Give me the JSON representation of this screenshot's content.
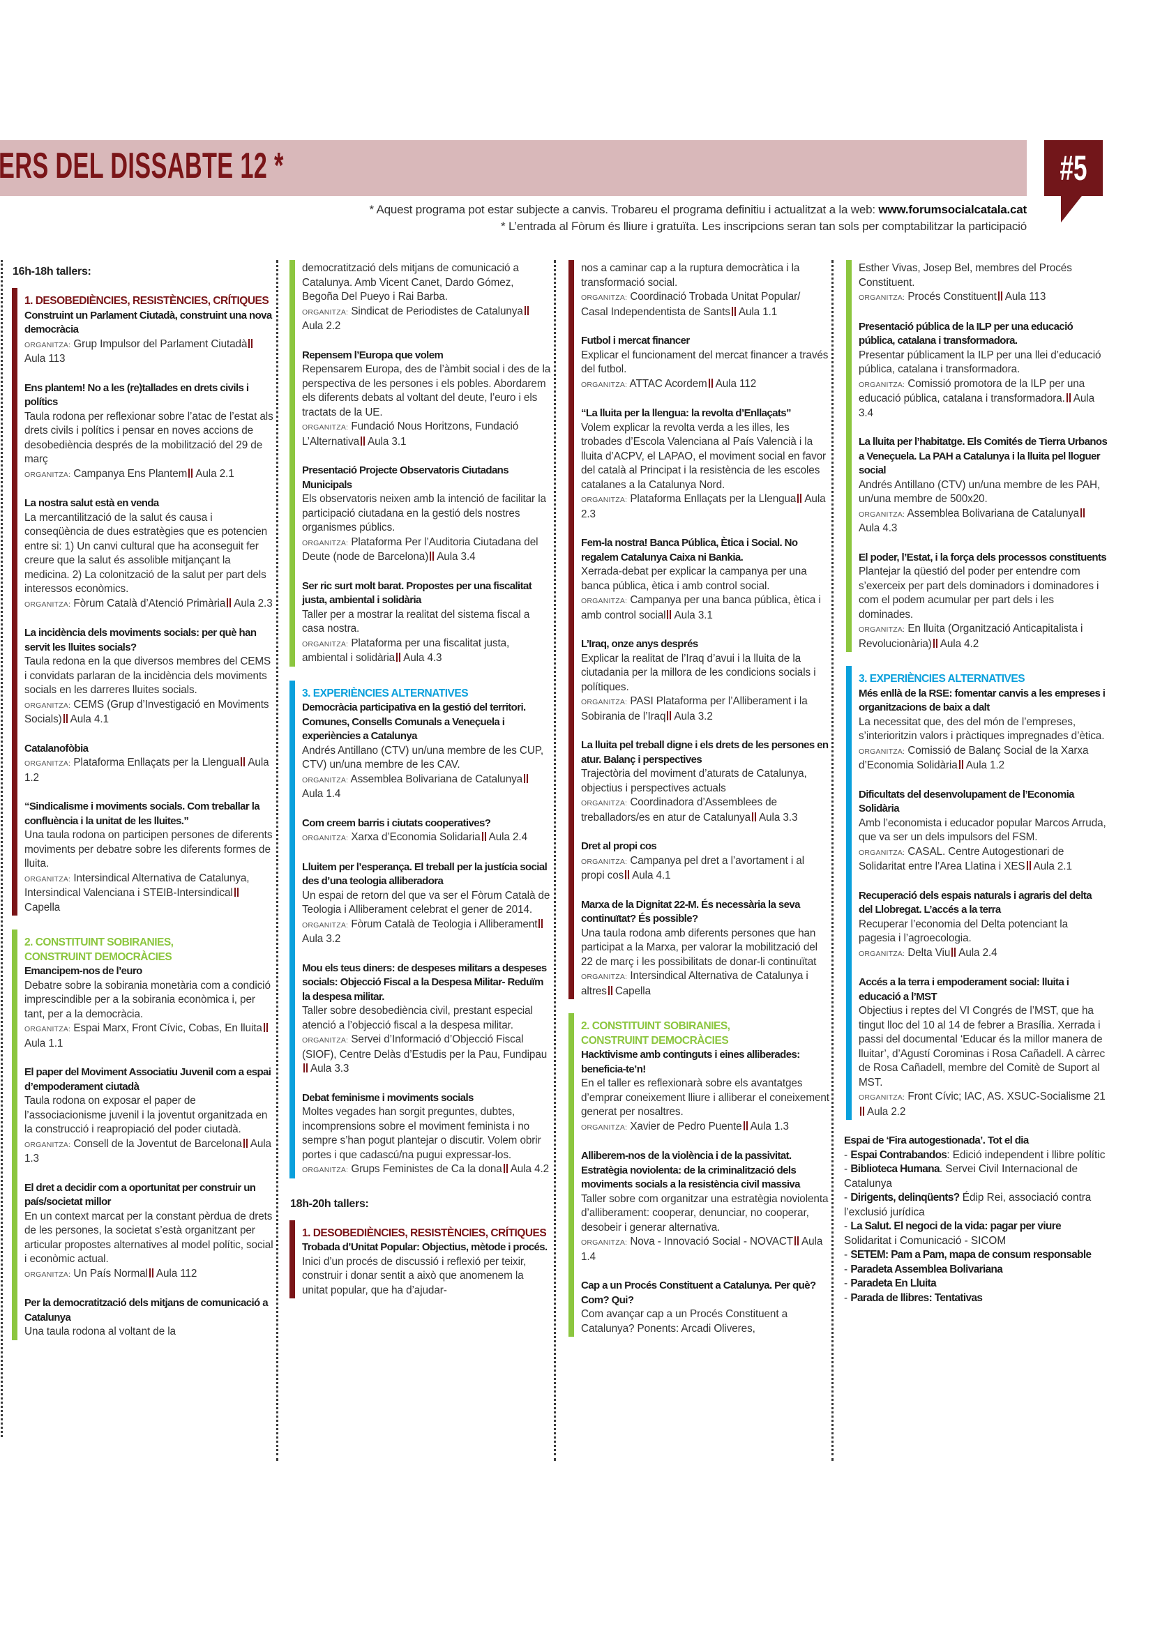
{
  "header": {
    "title": "ERS DEL DISSABTE 12 *",
    "badge": "#5",
    "note1_text": "* Aquest programa pot estar subjecte a canvis. Trobareu el programa definitiu i actualitzat a la web: ",
    "note1_link": "www.forumsocialcatala.cat",
    "note2": "* L’entrada al Fòrum és lliure i gratuïta. Les inscripcions seran tan sols per comptabilitzar la participació"
  },
  "colors": {
    "section1": "#7a1518",
    "section2": "#8cc63f",
    "section3": "#0aa0dc",
    "band": "#d9b8ba",
    "badge": "#72161a"
  },
  "org_label": "ORGANITZA:",
  "columns": [
    {
      "blocks": [
        {
          "type": "time",
          "label": "16h-18h tallers:"
        },
        {
          "type": "section",
          "category": "section1",
          "title": "1. DESOBEDIÈNCIES, RESISTÈNCIES, CRÍTIQUES",
          "items": [
            {
              "title": "Construint un Parlament Ciutadà, construint una nova democràcia",
              "org": "Grup Impulsor del Parlament Ciutadà",
              "room": "Aula 113"
            },
            {
              "title": "Ens plantem! No a les (re)tallades en drets civils i polítics",
              "desc": "Taula rodona per reflexionar sobre l’atac de l’estat als drets civils i polítics i pensar en noves accions de desobediència després de la mobilització del 29 de març",
              "org": "Campanya Ens Plantem",
              "room": "Aula 2.1"
            },
            {
              "title": "La nostra salut està en venda",
              "desc": "La mercantilització de la salut és causa i conseqüència de dues estratègies que es potencien entre si: 1) Un canvi cultural que ha aconseguit fer creure que la salut és assolible mitjançant la medicina. 2) La colonització de la salut per part dels interessos econòmics.",
              "org": "Fòrum Català d’Atenció Primària",
              "room": "Aula 2.3"
            },
            {
              "title": "La incidència dels moviments socials: per què han servit les lluites socials?",
              "desc": "Taula redona en la que diversos membres del CEMS i convidats parlaran de la incidència dels moviments socials en les darreres lluites socials.",
              "org": "CEMS (Grup d’Investigació en Moviments Socials)",
              "room": "Aula 4.1"
            },
            {
              "title": "Catalanofòbia",
              "org": "Plataforma Enllaçats per la Llengua",
              "room": "Aula 1.2"
            },
            {
              "title": "“Sindicalisme i moviments socials. Com treballar la confluència i la unitat de les lluites.”",
              "desc": "Una taula rodona on participen persones de diferents moviments per debatre sobre les diferents formes de lluita.",
              "org": "Intersindical Alternativa de Catalunya, Intersindical Valenciana i STEIB-Intersindical",
              "room": "Capella"
            }
          ]
        },
        {
          "type": "section",
          "category": "section2",
          "title": "2. CONSTITUINT SOBIRANIES,\nCONSTRUINT DEMOCRÀCIES",
          "items": [
            {
              "title": "Emancipem-nos de l’euro",
              "desc": "Debatre sobre la sobirania monetària com a condició imprescindible per a la sobirania econòmica i, per tant, per a la democràcia.",
              "org": "Espai Marx, Front Cívic, Cobas, En lluita",
              "room": "Aula 1.1"
            },
            {
              "title": "El paper del Moviment Associatiu Juvenil com a espai d’empoderament ciutadà",
              "desc": "Taula rodona on exposar el paper de l’associacionisme juvenil i la joventut organitzada en la construcció i reapropiació del poder ciutadà.",
              "org": "Consell de la Joventut de Barcelona",
              "room": "Aula 1.3"
            },
            {
              "title": "El dret a decidir com a oportunitat per construir un país/societat millor",
              "desc": "En un context marcat per la constant pèrdua de drets de les persones, la societat s’està organitzant per articular propostes alternatives al model polític, social i econòmic actual.",
              "org": "Un País Normal",
              "room": "Aula 112"
            },
            {
              "title": "Per la democratització dels mitjans de comunicació a Catalunya",
              "desc": "Una taula rodona al voltant de la"
            }
          ]
        }
      ]
    },
    {
      "blocks": [
        {
          "type": "section",
          "category": "section2",
          "items": [
            {
              "desc": "democratització dels mitjans de comunicació a Catalunya. Amb Vicent Canet, Dardo Gómez, Begoña Del Pueyo i Rai Barba.",
              "org": "Sindicat de Periodistes de Catalunya",
              "room": "Aula 2.2"
            },
            {
              "title": "Repensem l’Europa que volem",
              "desc": "Repensarem Europa, des de l’àmbit social i des de la perspectiva de les persones i els pobles. Abordarem els diferents debats al voltant del deute, l’euro i els tractats de la UE.",
              "org": "Fundació Nous Horitzons, Fundació L’Alternativa",
              "room": "Aula 3.1"
            },
            {
              "title": "Presentació Projecte Observatoris Ciutadans Municipals",
              "desc": "Els observatoris neixen amb la intenció de facilitar la participació ciutadana en la gestió dels nostres organismes públics.",
              "org": "Plataforma Per l’Auditoria Ciutadana del Deute (node de Barcelona)",
              "room": "Aula 3.4"
            },
            {
              "title": "Ser ric surt molt barat. Propostes per una fiscalitat justa, ambiental i solidària",
              "desc": "Taller per a mostrar la realitat del sistema fiscal a casa nostra.",
              "org": "Plataforma per una fiscalitat justa, ambiental i solidària",
              "room": "Aula 4.3"
            }
          ]
        },
        {
          "type": "section",
          "category": "section3",
          "title": "3. EXPERIÈNCIES ALTERNATIVES",
          "items": [
            {
              "title": "Democràcia participativa en la gestió del territori. Comunes, Consells Comunals a Veneçuela i experiències a Catalunya",
              "desc": "Andrés Antillano (CTV) un/una membre de les CUP, CTV) un/una membre de les CAV.",
              "org": "Assemblea Bolivariana de Catalunya",
              "room": "Aula 1.4"
            },
            {
              "title": "Com creem barris i ciutats cooperatives?",
              "org": "Xarxa d’Economia Solidaria",
              "room": "Aula 2.4"
            },
            {
              "title": "Lluitem per l’esperança. El treball per la justícia social des d’una teologia alliberadora",
              "desc": "Un espai de retorn del que va ser el Fòrum Català de Teologia i Alliberament celebrat el gener de 2014.",
              "org": "Fòrum Català de Teologia i Alliberament",
              "room": "Aula 3.2"
            },
            {
              "title": "Mou els teus diners: de despeses militars a despeses socials: Objecció Fiscal a la Despesa Militar- Reduïm la despesa militar.",
              "desc": "Taller sobre desobediència civil, prestant especial atenció a l’objecció fiscal a la despesa militar.",
              "org": "Servei d’Informació d’Objecció Fiscal (SIOF), Centre Delàs d’Estudis per la Pau, Fundipau",
              "room": "Aula 3.3"
            },
            {
              "title": "Debat feminisme i moviments socials",
              "desc": "Moltes vegades han sorgit preguntes, dubtes, incomprensions sobre el moviment feminista i no sempre s’han pogut plantejar o discutir. Volem obrir portes i que cadascú/na pugui expressar-los.",
              "org": "Grups Feministes de Ca la dona",
              "room": "Aula 4.2"
            }
          ]
        },
        {
          "type": "time",
          "label": "18h-20h tallers:"
        },
        {
          "type": "section",
          "category": "section1",
          "title": "1. DESOBEDIÈNCIES, RESISTÈNCIES, CRÍTIQUES",
          "items": [
            {
              "title": "Trobada d’Unitat Popular: Objectius, mètode i procés.",
              "desc": "Inici d’un procés de discussió i reflexió per teixir, construir i donar sentit a això que anomenem la unitat popular, que ha d’ajudar-"
            }
          ]
        }
      ]
    },
    {
      "blocks": [
        {
          "type": "section",
          "category": "section1",
          "items": [
            {
              "desc": "nos a caminar cap a la ruptura democràtica i la transformació social.",
              "org": "Coordinació Trobada Unitat Popular/ Casal Independentista de Sants",
              "room": "Aula 1.1"
            },
            {
              "title": "Futbol i mercat financer",
              "desc": "Explicar el funcionament del mercat financer a través del futbol.",
              "org": "ATTAC Acordem",
              "room": "Aula 112"
            },
            {
              "title": "“La lluita per la llengua: la revolta d’Enllaçats”",
              "desc": "Volem explicar la revolta verda a les illes, les trobades d’Escola Valenciana al País Valencià i la lluita d’ACPV, el LAPAO, el moviment social en favor del català al Principat i la resistència de les escoles catalanes a la Catalunya Nord.",
              "org": "Plataforma Enllaçats per la Llengua",
              "room": "Aula 2.3"
            },
            {
              "title": "Fem-la nostra! Banca Pública, Ètica i Social. No regalem Catalunya Caixa ni Bankia.",
              "desc": "Xerrada-debat per explicar la campanya per una banca pública, ètica i amb control social.",
              "org": "Campanya per una banca pública, ètica i amb control social",
              "room": "Aula 3.1"
            },
            {
              "title": "L’Iraq, onze anys després",
              "desc": "Explicar la realitat de l’Iraq d’avui i la lluita de la ciutadania per la millora de les condicions socials i polítiques.",
              "org": "PASI Plataforma per l’Alliberament i la Sobirania de l’Iraq",
              "room": "Aula 3.2"
            },
            {
              "title": "La lluita pel treball digne i els drets de les persones en atur. Balanç i perspectives",
              "desc": "Trajectòria del moviment d’aturats de Catalunya, objectius i perspectives actuals",
              "org": "Coordinadora d’Assemblees de treballadors/es en atur de Catalunya",
              "room": "Aula 3.3"
            },
            {
              "title": "Dret al propi cos",
              "org": "Campanya pel dret a l’avortament i al propi cos",
              "room": "Aula 4.1"
            },
            {
              "title": "Marxa de la Dignitat 22-M. És necessària la seva continuïtat? És possible?",
              "desc": "Una taula rodona amb diferents persones que han participat a la Marxa, per valorar la mobilització del 22 de març i les possibilitats de donar-li continuïtat",
              "org": "Intersindical Alternativa de Catalunya i altres",
              "room": "Capella"
            }
          ]
        },
        {
          "type": "section",
          "category": "section2",
          "title": "2. CONSTITUINT SOBIRANIES,\nCONSTRUINT DEMOCRÀCIES",
          "items": [
            {
              "title": "Hacktivisme amb continguts i eines alliberades: beneficia-te’n!",
              "desc": "En el taller es reflexionarà sobre els avantatges d’emprar coneixement lliure i alliberar el coneixement generat per nosaltres.",
              "org": "Xavier de Pedro Puente",
              "room": "Aula 1.3"
            },
            {
              "title": "Alliberem-nos de la violència i de la passivitat. Estratègia noviolenta: de la criminalització dels moviments socials a la resistència civil massiva",
              "desc": "Taller sobre com organitzar una estratègia noviolenta d’alliberament: cooperar, denunciar, no cooperar, desobeir i generar alternativa.",
              "org": "Nova - Innovació Social - NOVACT",
              "room": "Aula 1.4"
            },
            {
              "title": "Cap a un Procés Constituent a Catalunya. Per què? Com? Qui?",
              "desc": "Com avançar cap a un Procés Constituent a Catalunya? Ponents: Arcadi Oliveres,"
            }
          ]
        }
      ]
    },
    {
      "blocks": [
        {
          "type": "section",
          "category": "section2",
          "items": [
            {
              "desc": "Esther Vivas, Josep Bel, membres del Procés Constituent.",
              "org": "Procés Constituent",
              "room": "Aula 113"
            },
            {
              "title": "Presentació pública de la ILP per una educació pública, catalana i transformadora.",
              "desc": "Presentar públicament la ILP per una llei d’educació pública, catalana i transformadora.",
              "org": "Comissió promotora de la ILP per una educació pública, catalana i transformadora.",
              "room": "Aula 3.4"
            },
            {
              "title": "La lluita per l’habitatge. Els Comités de Tierra Urbanos a Veneçuela. La PAH a Catalunya i la lluita pel lloguer social",
              "desc": "Andrés Antillano (CTV) un/una membre de les PAH, un/una membre de 500x20.",
              "org": "Assemblea Bolivariana de Catalunya",
              "room": "Aula 4.3"
            },
            {
              "title": "El poder, l’Estat, i la força dels processos constituents",
              "desc": "Plantejar la qüestió del poder per entendre com s’exerceix per part dels dominadors i dominadores i com el podem acumular per part dels i les dominades.",
              "org": "En lluita (Organització Anticapitalista i Revolucionària)",
              "room": "Aula 4.2"
            }
          ]
        },
        {
          "type": "section",
          "category": "section3",
          "title": "3. EXPERIÈNCIES ALTERNATIVES",
          "items": [
            {
              "title": "Més enllà de la RSE: fomentar canvis a les empreses i organitzacions de baix a dalt",
              "desc": "La necessitat que, des del món de l’empreses, s’interioritzin valors i pràctiques impregnades d’ètica.",
              "org": "Comissió de Balanç Social de la Xarxa d’Economia Solidària",
              "room": "Aula 1.2"
            },
            {
              "title": "Dificultats del desenvolupament de l’Economia Solidària",
              "desc": "Amb l’economista i educador popular Marcos Arruda, que va ser un dels impulsors del FSM.",
              "org": "CASAL. Centre Autogestionari de Solidaritat entre l’Area Llatina i XES",
              "room": "Aula 2.1"
            },
            {
              "title": "Recuperació dels espais naturals i agraris del delta del Llobregat. L’accés a la terra",
              "desc": "Recuperar l’economia del Delta potenciant la pagesia i l’agroecologia.",
              "org": "Delta Viu",
              "room": "Aula 2.4"
            },
            {
              "title": "Accés a la terra i empoderament social: lluita i educació a l’MST",
              "desc": "Objectius i reptes del VI Congrés de l’MST, que ha tingut lloc del 10 al 14 de febrer a Brasília. Xerrada i passi del documental ‘Educar és la millor manera de lluitar’, d’Agustí Corominas i Rosa Cañadell. A càrrec de Rosa Cañadell, membre del Comitè de Suport al MST.",
              "org": "Front Cívic; IAC, AS. XSUC-Socialisme 21",
              "room": "Aula 2.2"
            }
          ]
        },
        {
          "type": "fira",
          "title": "Espai de ‘Fira autogestionada’. Tot el dia",
          "dash": "- ",
          "entries": [
            {
              "bold": "Espai Contrabandos",
              "text": ": Edició independent i llibre polític"
            },
            {
              "bold": "Biblioteca Humana",
              "text": ". Servei Civil Internacional de Catalunya"
            },
            {
              "bold": "Dirigents, delinqüents?",
              "text": " Édip Rei, associació contra l’exclusió jurídica"
            },
            {
              "bold": "La Salut. El negoci de la vida: pagar per viure",
              "text": " Solidaritat i Comunicació - SICOM"
            },
            {
              "bold": "SETEM: Pam a Pam, mapa de consum responsable",
              "text": ""
            },
            {
              "bold": "Paradeta Assemblea Bolivariana",
              "text": ""
            },
            {
              "bold": "Paradeta En Lluita",
              "text": ""
            },
            {
              "bold": "Parada de llibres: Tentativas",
              "text": ""
            }
          ]
        }
      ]
    }
  ]
}
